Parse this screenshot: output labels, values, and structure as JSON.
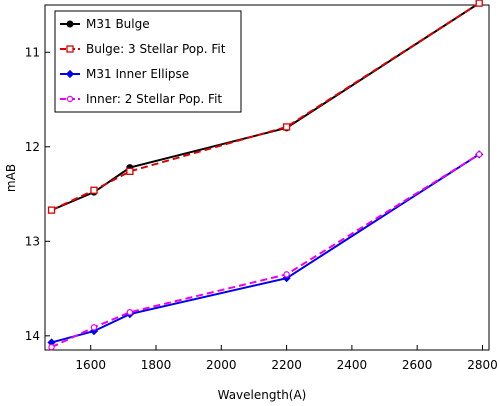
{
  "chart_data": {
    "type": "line",
    "title": "",
    "xlabel": "Wavelength(A)",
    "ylabel": "mAB",
    "xlim": [
      1460,
      2820
    ],
    "ylim": [
      10.5,
      14.15
    ],
    "y_inverted": true,
    "x_ticks": [
      1600,
      1800,
      2000,
      2200,
      2400,
      2600,
      2800
    ],
    "y_ticks": [
      11,
      12,
      13,
      14
    ],
    "grid": false,
    "legend_position": "top-left",
    "series": [
      {
        "name": "M31 Bulge",
        "color": "#000000",
        "line_style": "solid",
        "marker": "filled-circle",
        "x": [
          1480,
          1610,
          1720,
          2200,
          2790
        ],
        "y": [
          12.67,
          12.48,
          12.22,
          11.8,
          10.48
        ]
      },
      {
        "name": "Bulge: 3 Stellar Pop. Fit",
        "color": "#dd0000",
        "line_style": "dashed",
        "marker": "open-square",
        "x": [
          1480,
          1610,
          1720,
          2200,
          2790
        ],
        "y": [
          12.67,
          12.46,
          12.26,
          11.79,
          10.48
        ]
      },
      {
        "name": "M31 Inner Ellipse",
        "color": "#0000ee",
        "line_style": "solid",
        "marker": "filled-diamond",
        "x": [
          1480,
          1610,
          1720,
          2200,
          2790
        ],
        "y": [
          14.07,
          13.95,
          13.77,
          13.39,
          12.08
        ]
      },
      {
        "name": "Inner: 2 Stellar Pop. Fit",
        "color": "#ee00ee",
        "line_style": "dashed",
        "marker": "open-circle",
        "x": [
          1480,
          1610,
          1720,
          2200,
          2790
        ],
        "y": [
          14.12,
          13.91,
          13.75,
          13.35,
          12.08
        ]
      }
    ]
  }
}
